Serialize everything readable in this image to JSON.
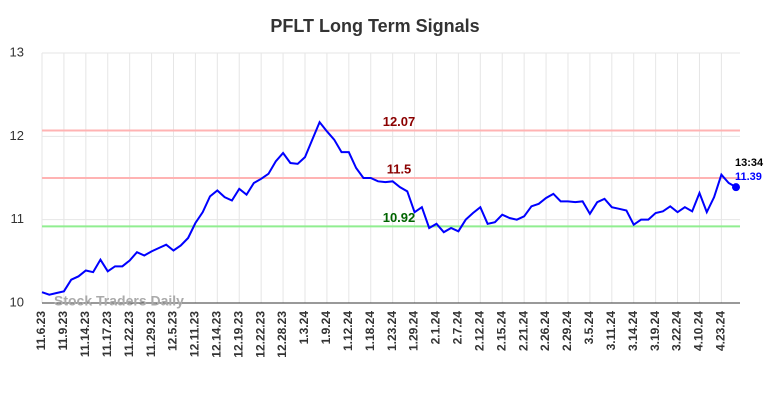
{
  "chart_data": {
    "type": "line",
    "title": "PFLT Long Term Signals",
    "watermark": "Stock Traders Daily",
    "categories": [
      "11.6.23",
      null,
      null,
      "11.9.23",
      null,
      null,
      "11.14.23",
      null,
      null,
      "11.17.23",
      null,
      null,
      "11.22.23",
      null,
      null,
      "11.29.23",
      null,
      null,
      "12.5.23",
      null,
      null,
      "12.11.23",
      null,
      null,
      "12.14.23",
      null,
      null,
      "12.19.23",
      null,
      null,
      "12.22.23",
      null,
      null,
      "12.28.23",
      null,
      null,
      "1.3.24",
      null,
      null,
      "1.9.24",
      null,
      null,
      "1.12.24",
      null,
      null,
      "1.18.24",
      null,
      null,
      "1.23.24",
      null,
      null,
      "1.29.24",
      null,
      null,
      "2.1.24",
      null,
      null,
      "2.7.24",
      null,
      null,
      "2.12.24",
      null,
      null,
      "2.15.24",
      null,
      null,
      "2.21.24",
      null,
      null,
      "2.26.24",
      null,
      null,
      "2.29.24",
      null,
      null,
      "3.5.24",
      null,
      null,
      "3.11.24",
      null,
      null,
      "3.14.24",
      null,
      null,
      "3.19.24",
      null,
      null,
      "3.22.24",
      null,
      null,
      "4.10.24",
      null,
      null,
      "4.23.24",
      null,
      null
    ],
    "series": [
      {
        "name": "PFLT",
        "color": "#0000ff",
        "values": [
          10.13,
          10.1,
          10.12,
          10.14,
          10.28,
          10.32,
          10.39,
          10.37,
          10.52,
          10.38,
          10.44,
          10.44,
          10.51,
          10.61,
          10.57,
          10.62,
          10.66,
          10.7,
          10.63,
          10.69,
          10.78,
          10.96,
          11.09,
          11.28,
          11.35,
          11.27,
          11.23,
          11.37,
          11.3,
          11.44,
          11.49,
          11.55,
          11.7,
          11.8,
          11.68,
          11.67,
          11.75,
          11.96,
          12.17,
          12.06,
          11.96,
          11.81,
          11.81,
          11.62,
          11.5,
          11.5,
          11.46,
          11.45,
          11.46,
          11.39,
          11.34,
          11.09,
          11.15,
          10.9,
          10.95,
          10.85,
          10.9,
          10.86,
          11.0,
          11.08,
          11.15,
          10.95,
          10.97,
          11.06,
          11.02,
          11.0,
          11.04,
          11.16,
          11.19,
          11.26,
          11.31,
          11.22,
          11.22,
          11.21,
          11.22,
          11.07,
          11.21,
          11.25,
          11.15,
          11.13,
          11.11,
          10.94,
          11.0,
          11.0,
          11.08,
          11.1,
          11.16,
          11.09,
          11.15,
          11.1,
          11.32,
          11.09,
          11.27,
          11.54,
          11.44,
          11.39
        ]
      }
    ],
    "levels": [
      {
        "value": 12.07,
        "color": "#ffb3b3",
        "label_color": "#8b0000"
      },
      {
        "value": 11.5,
        "color": "#ffb3b3",
        "label_color": "#8b0000"
      },
      {
        "value": 10.92,
        "color": "#90ee90",
        "label_color": "#006400"
      }
    ],
    "last_time": "13:34",
    "ylim": [
      10,
      13
    ],
    "yticks": [
      10,
      11,
      12,
      13
    ],
    "grid": true
  }
}
